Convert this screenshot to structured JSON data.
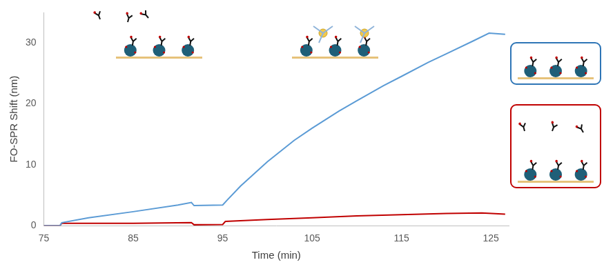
{
  "chart_data": {
    "type": "line",
    "x_label": "Time (min)",
    "y_label": "FO-SPR Shift (nm)",
    "xlim": [
      75,
      127
    ],
    "xticks": [
      75,
      85,
      95,
      105,
      115,
      125
    ],
    "ylim": [
      0,
      35
    ],
    "yticks": [
      0,
      10,
      20,
      30
    ],
    "grid": false,
    "series": [
      {
        "color": "#5b9bd5",
        "x": [
          75,
          76.8,
          77,
          80,
          85,
          90,
          91.5,
          91.8,
          95,
          95.5,
          97,
          100,
          103,
          105,
          108,
          110,
          113,
          115,
          118,
          120,
          123,
          124.8,
          126.6
        ],
        "values": [
          0,
          0,
          0.5,
          1.3,
          2.3,
          3.4,
          3.8,
          3.3,
          3.4,
          4.2,
          6.5,
          10.5,
          14,
          16,
          18.8,
          20.5,
          23,
          24.5,
          26.8,
          28.2,
          30.3,
          31.6,
          31.4
        ]
      },
      {
        "color": "#c00000",
        "x": [
          75,
          76.8,
          77,
          85,
          91.5,
          91.8,
          95,
          95.3,
          100,
          105,
          110,
          115,
          120,
          124,
          126.6
        ],
        "values": [
          0,
          0,
          0.4,
          0.4,
          0.5,
          0.15,
          0.2,
          0.7,
          1.0,
          1.3,
          1.6,
          1.8,
          2.0,
          2.1,
          1.9
        ]
      }
    ]
  }
}
